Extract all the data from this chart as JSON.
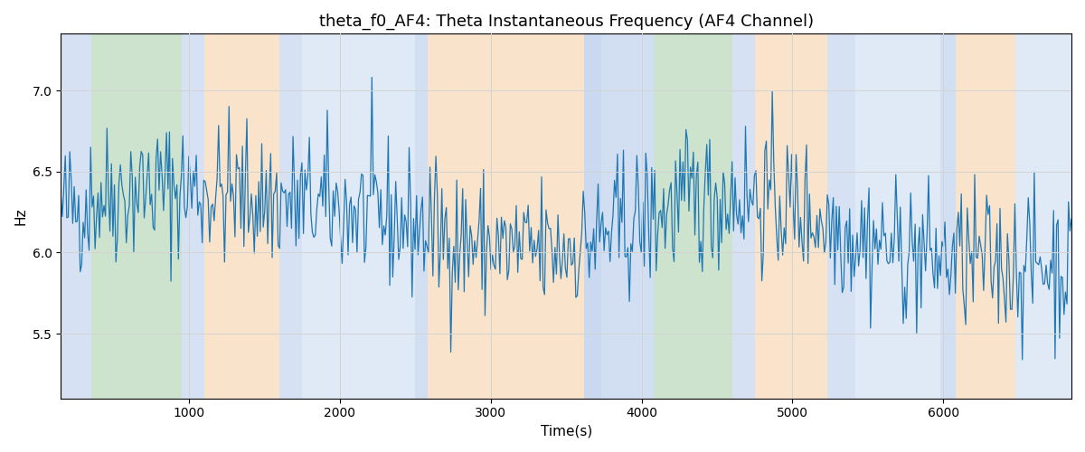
{
  "title": "theta_f0_AF4: Theta Instantaneous Frequency (AF4 Channel)",
  "xlabel": "Time(s)",
  "ylabel": "Hz",
  "xlim": [
    150,
    6850
  ],
  "ylim": [
    5.1,
    7.35
  ],
  "yticks": [
    5.5,
    6.0,
    6.5,
    7.0
  ],
  "line_color": "#1f77b4",
  "line_width": 0.9,
  "bg_regions": [
    {
      "xstart": 150,
      "xend": 350,
      "color": "#aec6e8",
      "alpha": 0.5
    },
    {
      "xstart": 350,
      "xend": 950,
      "color": "#9dc89d",
      "alpha": 0.5
    },
    {
      "xstart": 950,
      "xend": 1100,
      "color": "#aec6e8",
      "alpha": 0.5
    },
    {
      "xstart": 1100,
      "xend": 1600,
      "color": "#f5c898",
      "alpha": 0.5
    },
    {
      "xstart": 1600,
      "xend": 1750,
      "color": "#aec6e8",
      "alpha": 0.5
    },
    {
      "xstart": 1750,
      "xend": 2500,
      "color": "#aec6e8",
      "alpha": 0.38
    },
    {
      "xstart": 2500,
      "xend": 2580,
      "color": "#aec6e8",
      "alpha": 0.55
    },
    {
      "xstart": 2580,
      "xend": 3620,
      "color": "#f5c898",
      "alpha": 0.5
    },
    {
      "xstart": 3620,
      "xend": 3730,
      "color": "#aec6e8",
      "alpha": 0.65
    },
    {
      "xstart": 3730,
      "xend": 4080,
      "color": "#aec6e8",
      "alpha": 0.55
    },
    {
      "xstart": 4080,
      "xend": 4600,
      "color": "#9dc89d",
      "alpha": 0.5
    },
    {
      "xstart": 4600,
      "xend": 4750,
      "color": "#aec6e8",
      "alpha": 0.5
    },
    {
      "xstart": 4750,
      "xend": 5230,
      "color": "#f5c898",
      "alpha": 0.5
    },
    {
      "xstart": 5230,
      "xend": 5420,
      "color": "#aec6e8",
      "alpha": 0.5
    },
    {
      "xstart": 5420,
      "xend": 5980,
      "color": "#aec6e8",
      "alpha": 0.38
    },
    {
      "xstart": 5980,
      "xend": 6080,
      "color": "#aec6e8",
      "alpha": 0.55
    },
    {
      "xstart": 6080,
      "xend": 6480,
      "color": "#f5c898",
      "alpha": 0.5
    },
    {
      "xstart": 6480,
      "xend": 6850,
      "color": "#aec6e8",
      "alpha": 0.38
    }
  ],
  "seed": 42,
  "n_points": 680,
  "x_start": 150,
  "x_end": 6850,
  "y_mean": 6.15,
  "title_fontsize": 13
}
